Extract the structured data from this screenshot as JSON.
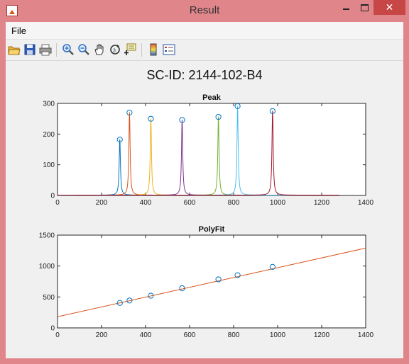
{
  "window": {
    "title": "Result",
    "minimize_label": "",
    "maximize_label": "",
    "close_label": "✕"
  },
  "menubar": {
    "file_label": "File"
  },
  "toolbar": {
    "icons": [
      "open-folder-icon",
      "save-icon",
      "print-icon",
      "zoom-in-icon",
      "zoom-out-icon",
      "pan-hand-icon",
      "rotate-3d-icon",
      "data-cursor-icon",
      "colorbar-icon",
      "legend-icon"
    ]
  },
  "figure": {
    "title": "SC-ID: 2144-102-B4"
  },
  "chart_data": [
    {
      "type": "line",
      "title": "Peak",
      "xlim": [
        0,
        1400
      ],
      "ylim": [
        0,
        300
      ],
      "xticks": [
        0,
        200,
        400,
        600,
        800,
        1000,
        1200,
        1400
      ],
      "yticks": [
        0,
        100,
        200,
        300
      ],
      "peaks": [
        {
          "x": 283,
          "y": 182,
          "color": "#0072bd"
        },
        {
          "x": 327,
          "y": 270,
          "color": "#d95319"
        },
        {
          "x": 424,
          "y": 250,
          "color": "#edb120"
        },
        {
          "x": 566,
          "y": 246,
          "color": "#7e2f8e"
        },
        {
          "x": 731,
          "y": 256,
          "color": "#77ac30"
        },
        {
          "x": 818,
          "y": 291,
          "color": "#4dbeee"
        },
        {
          "x": 977,
          "y": 275,
          "color": "#a2142f"
        }
      ],
      "markers": [
        {
          "x": 283,
          "y": 182
        },
        {
          "x": 327,
          "y": 270
        },
        {
          "x": 424,
          "y": 250
        },
        {
          "x": 566,
          "y": 246
        },
        {
          "x": 731,
          "y": 256
        },
        {
          "x": 818,
          "y": 291
        },
        {
          "x": 977,
          "y": 275
        }
      ],
      "baseline_end": 1280
    },
    {
      "type": "scatter",
      "title": "PolyFit",
      "xlim": [
        0,
        1400
      ],
      "ylim": [
        0,
        1500
      ],
      "xticks": [
        0,
        200,
        400,
        600,
        800,
        1000,
        1200,
        1400
      ],
      "yticks": [
        0,
        500,
        1000,
        1500
      ],
      "points": [
        {
          "x": 283,
          "y": 404
        },
        {
          "x": 327,
          "y": 443
        },
        {
          "x": 424,
          "y": 520
        },
        {
          "x": 566,
          "y": 641
        },
        {
          "x": 731,
          "y": 785
        },
        {
          "x": 818,
          "y": 852
        },
        {
          "x": 977,
          "y": 986
        }
      ],
      "fit_line": {
        "x": [
          0,
          1400
        ],
        "y": [
          180,
          1290
        ],
        "color": "#d95319"
      },
      "marker_color": "#0072bd"
    }
  ]
}
